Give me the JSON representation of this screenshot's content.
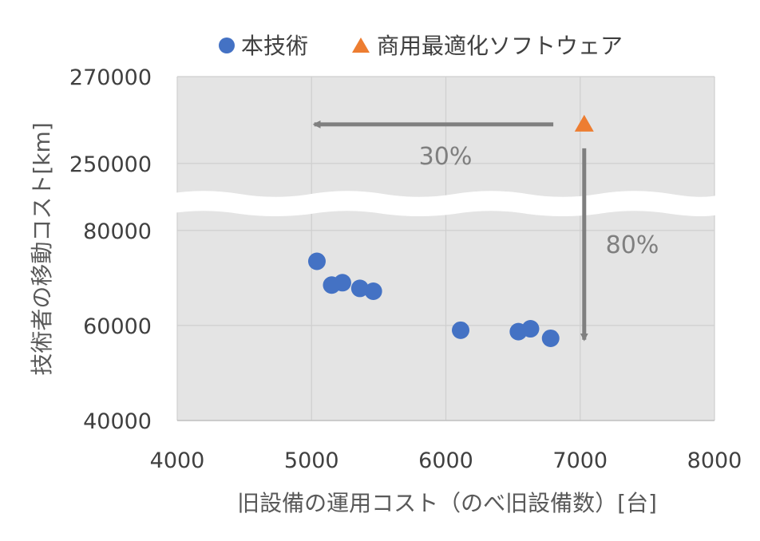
{
  "chart_data": {
    "type": "scatter",
    "title": "",
    "xlabel": "旧設備の運用コスト（のべ旧設備数）[台]",
    "ylabel": "技術者の移動コスト[km]",
    "xlim": [
      4000,
      8000
    ],
    "x_ticks": [
      "4000",
      "5000",
      "6000",
      "7000",
      "8000"
    ],
    "y_ticks": [
      "40000",
      "60000",
      "80000",
      "250000",
      "270000"
    ],
    "y_axis_break": {
      "lower": [
        40000,
        85000
      ],
      "upper": [
        243000,
        270000
      ]
    },
    "grid": true,
    "legend_position": "top",
    "series": [
      {
        "name": "本技術",
        "marker": "circle",
        "color": "#4472C4",
        "points": [
          {
            "x": 5040,
            "y": 73500
          },
          {
            "x": 5150,
            "y": 68500
          },
          {
            "x": 5230,
            "y": 69000
          },
          {
            "x": 5360,
            "y": 67800
          },
          {
            "x": 5460,
            "y": 67200
          },
          {
            "x": 6110,
            "y": 59000
          },
          {
            "x": 6540,
            "y": 58700
          },
          {
            "x": 6630,
            "y": 59300
          },
          {
            "x": 6780,
            "y": 57300
          }
        ]
      },
      {
        "name": "商用最適化ソフトウェア",
        "marker": "triangle",
        "color": "#ED7D31",
        "points": [
          {
            "x": 7030,
            "y": 259000
          }
        ]
      }
    ],
    "annotations": [
      {
        "text": "30%",
        "direction": "left",
        "from": [
          6800,
          259000
        ],
        "to": [
          5020,
          259000
        ]
      },
      {
        "text": "80%",
        "direction": "down",
        "from": [
          7030,
          253500
        ],
        "to": [
          7030,
          57000
        ]
      }
    ]
  }
}
